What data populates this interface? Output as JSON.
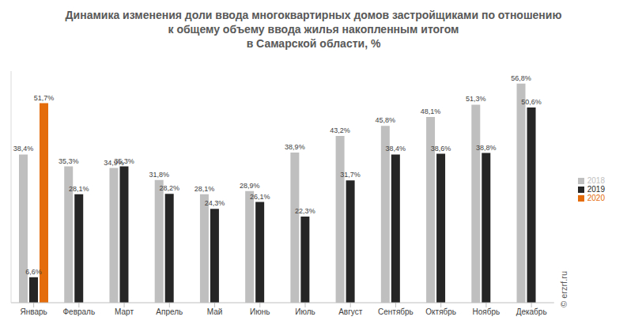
{
  "chart_data": {
    "type": "bar",
    "title": "Динамика изменения доли ввода многоквартирных домов застройщиками по отношению\nк общему объему ввода жилья накопленным итогом\nв Самарской области, %",
    "categories": [
      "Январь",
      "Февраль",
      "Март",
      "Апрель",
      "Май",
      "Июнь",
      "Июль",
      "Август",
      "Сентябрь",
      "Октябрь",
      "Ноябрь",
      "Декабрь"
    ],
    "series": [
      {
        "name": "2018",
        "color": "#bfbfbf",
        "values": [
          38.4,
          35.3,
          34.9,
          31.8,
          28.1,
          28.9,
          38.9,
          43.2,
          45.8,
          48.1,
          51.3,
          56.8
        ],
        "value_labels": [
          "38,4%",
          "35,3%",
          "34,9%",
          "31,8%",
          "28,1%",
          "28,9%",
          "38,9%",
          "43,2%",
          "45,8%",
          "48,1%",
          "51,3%",
          "56,8%"
        ]
      },
      {
        "name": "2019",
        "color": "#262626",
        "values": [
          6.6,
          28.1,
          35.3,
          28.2,
          24.3,
          26.1,
          22.3,
          31.7,
          38.4,
          38.6,
          38.8,
          50.6
        ],
        "value_labels": [
          "6,6%",
          "28,1%",
          "35,3%",
          "28,2%",
          "24,3%",
          "26,1%",
          "22,3%",
          "31,7%",
          "38,4%",
          "38,6%",
          "38,8%",
          "50,6%"
        ]
      },
      {
        "name": "2020",
        "color": "#e46c0a",
        "values": [
          51.7,
          null,
          null,
          null,
          null,
          null,
          null,
          null,
          null,
          null,
          null,
          null
        ],
        "value_labels": [
          "51,7%",
          null,
          null,
          null,
          null,
          null,
          null,
          null,
          null,
          null,
          null,
          null
        ]
      }
    ],
    "ylim": [
      0,
      60
    ],
    "grid": false,
    "legend": "right",
    "data_labels": true,
    "tick_labels": "x",
    "annotations": [
      "© erzrf.ru"
    ]
  }
}
